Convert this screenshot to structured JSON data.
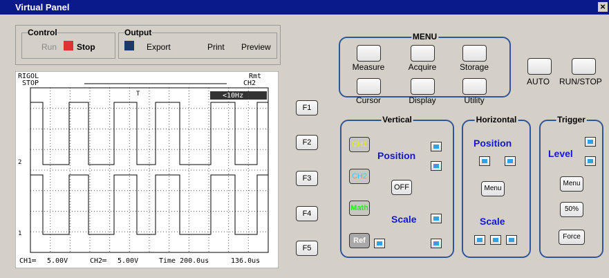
{
  "window": {
    "title": "Virtual Panel",
    "close": "×"
  },
  "toolbar": {
    "control": {
      "label": "Control",
      "run": "Run",
      "stop": "Stop"
    },
    "output": {
      "label": "Output",
      "export": "Export",
      "print": "Print",
      "preview": "Preview"
    }
  },
  "scope": {
    "brand": "RIGOL",
    "status": "STOP",
    "remote": "Rmt",
    "trigger_source": "CH2",
    "frequency": "<10Hz",
    "trigger_marker": "T",
    "ch1_marker": "1",
    "ch2_marker": "2",
    "footer": {
      "ch1": "CH1═",
      "ch1_scale": "5.00V",
      "ch2": "CH2═",
      "ch2_scale": "5.00V",
      "time": "Time 200.0us",
      "offset": "136.0us"
    }
  },
  "softkeys": [
    "F1",
    "F2",
    "F3",
    "F4",
    "F5"
  ],
  "menu": {
    "title": "MENU",
    "buttons": [
      "Measure",
      "Acquire",
      "Storage",
      "Cursor",
      "Display",
      "Utility"
    ]
  },
  "auto": "AUTO",
  "run_stop": "RUN/STOP",
  "vertical": {
    "title": "Vertical",
    "ch1": "CH1",
    "ch2": "CH2",
    "math": "Math",
    "ref": "Ref",
    "position": "Position",
    "off": "OFF",
    "scale": "Scale"
  },
  "horizontal": {
    "title": "Horizontal",
    "position": "Position",
    "menu": "Menu",
    "scale": "Scale"
  },
  "trigger": {
    "title": "Trigger",
    "level": "Level",
    "menu": "Menu",
    "half": "50%",
    "force": "Force"
  }
}
